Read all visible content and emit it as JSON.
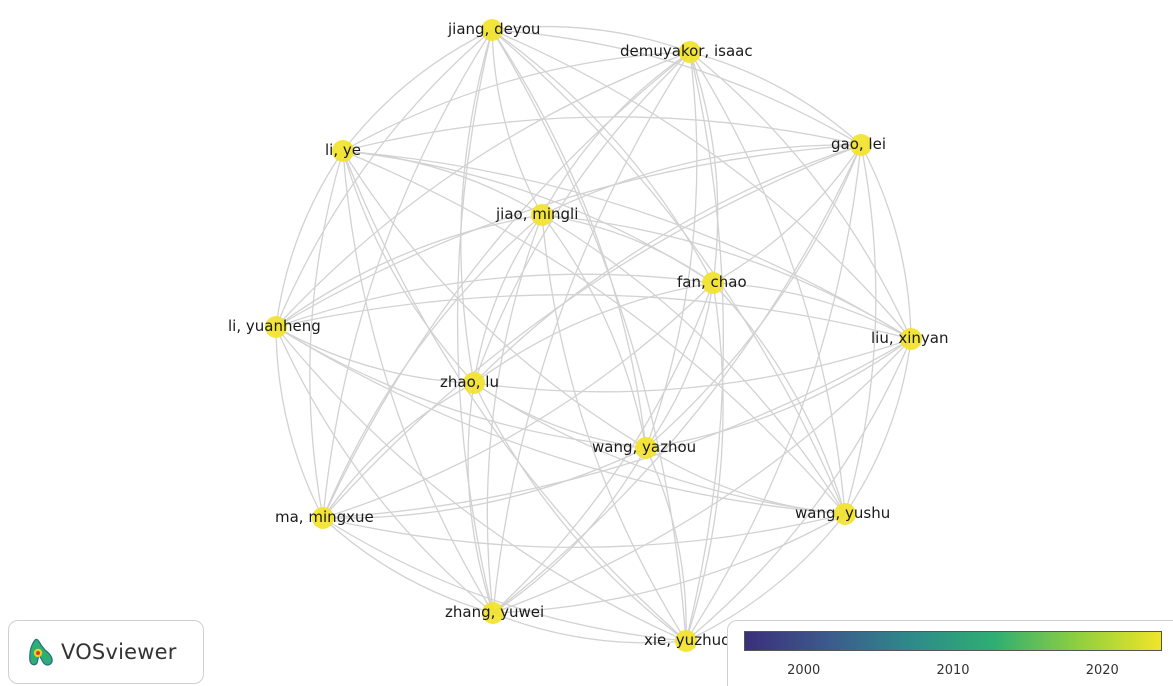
{
  "nodes": [
    {
      "id": "jiang_deyou",
      "label": "jiang, deyou"
    },
    {
      "id": "demuyakor_isaac",
      "label": "demuyakor, isaac"
    },
    {
      "id": "gao_lei",
      "label": "gao, lei"
    },
    {
      "id": "li_ye",
      "label": "li, ye"
    },
    {
      "id": "jiao_mingli",
      "label": "jiao, mingli"
    },
    {
      "id": "fan_chao",
      "label": "fan, chao"
    },
    {
      "id": "li_yuanheng",
      "label": "li, yuanheng"
    },
    {
      "id": "liu_xinyan",
      "label": "liu, xinyan"
    },
    {
      "id": "zhao_lu",
      "label": "zhao, lu"
    },
    {
      "id": "wang_yazhou",
      "label": "wang, yazhou"
    },
    {
      "id": "ma_mingxue",
      "label": "ma, mingxue"
    },
    {
      "id": "wang_yushu",
      "label": "wang, yushu"
    },
    {
      "id": "zhang_yuwei",
      "label": "zhang, yuwei"
    },
    {
      "id": "xie_yuzhuo",
      "label": "xie, yuzhuo"
    }
  ],
  "colors": {
    "node": "#f2e32a",
    "edge": "#d2d2d2",
    "colorbar_stops": [
      "#3b2f7a",
      "#3c5a8c",
      "#2e8a8a",
      "#2fae73",
      "#8fcf3f",
      "#f0e529"
    ]
  },
  "logo": {
    "text": "VOSviewer",
    "icon": "vosviewer-logo-icon"
  },
  "legend": {
    "ticks": [
      "2000",
      "2010",
      "2020"
    ],
    "tick_values": [
      2000,
      2010,
      2020
    ],
    "range": [
      1996,
      2024
    ]
  }
}
